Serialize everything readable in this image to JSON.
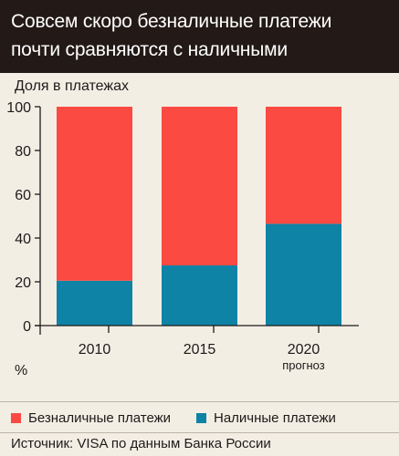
{
  "header": {
    "title_line1": "Совсем скоро безналичные платежи",
    "title_line2": "почти сравняются с наличными"
  },
  "chart_data": {
    "type": "bar",
    "stacked": true,
    "ylabel": "Доля в платежах",
    "unit": "%",
    "ylim": [
      0,
      100
    ],
    "yticks": [
      0,
      20,
      40,
      60,
      80,
      100
    ],
    "categories": [
      "2010",
      "2015",
      "2020"
    ],
    "category_notes": [
      "",
      "",
      "прогноз"
    ],
    "series": [
      {
        "name": "Наличные платежи",
        "color": "#0e83a6",
        "values": [
          20.5,
          27.5,
          46.5
        ]
      },
      {
        "name": "Безналичные платежи",
        "color": "#fb4a41",
        "values": [
          79.5,
          72.5,
          53.5
        ]
      }
    ],
    "grid": false,
    "legend_position": "bottom"
  },
  "legend": {
    "items": [
      {
        "label": "Безналичные платежи",
        "color": "#fb4a41"
      },
      {
        "label": "Наличные платежи",
        "color": "#0e83a6"
      }
    ]
  },
  "source": "Источник: VISA по данным Банка России"
}
